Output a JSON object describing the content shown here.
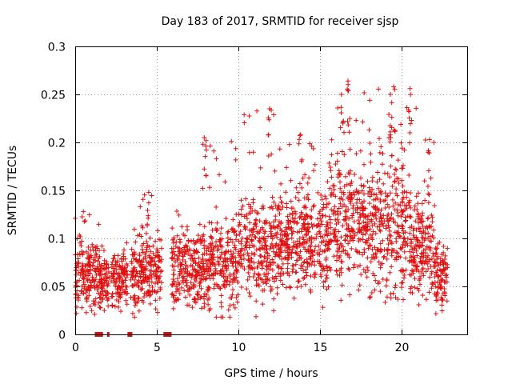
{
  "chart_data": {
    "type": "scatter",
    "title": "Day 183 of 2017, SRMTID for receiver sjsp",
    "xlabel": "GPS time / hours",
    "ylabel": "SRMTID / TECUs",
    "xlim": [
      0,
      24
    ],
    "ylim": [
      0,
      0.3
    ],
    "x_ticks": [
      0,
      5,
      10,
      15,
      20
    ],
    "x_tick_labels": [
      "0",
      "5",
      "10",
      "15",
      "20"
    ],
    "y_ticks": [
      0,
      0.05,
      0.1,
      0.15,
      0.2,
      0.25,
      0.3
    ],
    "y_tick_labels": [
      "0",
      "0.05",
      "0.1",
      "0.15",
      "0.2",
      "0.25",
      "0.3"
    ],
    "grid": true,
    "marker": "+",
    "color": "#e01010",
    "series": [
      {
        "name": "SRMTID",
        "profile": [
          {
            "x0": 0.0,
            "x1": 1.5,
            "mean": 0.062,
            "spread": 0.018,
            "max": 0.128
          },
          {
            "x0": 1.5,
            "x1": 2.1,
            "mean": 0.055,
            "spread": 0.015,
            "max": 0.1
          },
          {
            "x0": 2.2,
            "x1": 3.2,
            "mean": 0.058,
            "spread": 0.018,
            "max": 0.12
          },
          {
            "x0": 3.4,
            "x1": 5.3,
            "mean": 0.066,
            "spread": 0.02,
            "max": 0.148
          },
          {
            "x0": 5.9,
            "x1": 7.5,
            "mean": 0.068,
            "spread": 0.02,
            "max": 0.13
          },
          {
            "x0": 7.5,
            "x1": 10.0,
            "mean": 0.075,
            "spread": 0.024,
            "max": 0.205
          },
          {
            "x0": 10.0,
            "x1": 13.0,
            "mean": 0.092,
            "spread": 0.026,
            "max": 0.235
          },
          {
            "x0": 13.0,
            "x1": 15.5,
            "mean": 0.098,
            "spread": 0.027,
            "max": 0.208
          },
          {
            "x0": 15.5,
            "x1": 18.0,
            "mean": 0.118,
            "spread": 0.034,
            "max": 0.264
          },
          {
            "x0": 18.0,
            "x1": 20.5,
            "mean": 0.112,
            "spread": 0.035,
            "max": 0.258
          },
          {
            "x0": 20.5,
            "x1": 22.0,
            "mean": 0.09,
            "spread": 0.028,
            "max": 0.256
          },
          {
            "x0": 22.0,
            "x1": 22.8,
            "mean": 0.062,
            "spread": 0.016,
            "max": 0.098
          }
        ],
        "peaks": [
          {
            "x": 0.5,
            "y": 0.128
          },
          {
            "x": 4.5,
            "y": 0.148
          },
          {
            "x": 7.9,
            "y": 0.205
          },
          {
            "x": 11.9,
            "y": 0.235
          },
          {
            "x": 13.8,
            "y": 0.208
          },
          {
            "x": 16.3,
            "y": 0.25
          },
          {
            "x": 16.7,
            "y": 0.264
          },
          {
            "x": 19.3,
            "y": 0.25
          },
          {
            "x": 19.5,
            "y": 0.258
          },
          {
            "x": 20.5,
            "y": 0.256
          },
          {
            "x": 21.7,
            "y": 0.203
          }
        ]
      }
    ],
    "data_gaps": [
      {
        "x0": 1.2,
        "x1": 1.7
      },
      {
        "x0": 1.95,
        "x1": 2.1
      },
      {
        "x0": 3.2,
        "x1": 3.5
      },
      {
        "x0": 5.4,
        "x1": 5.9
      }
    ]
  }
}
